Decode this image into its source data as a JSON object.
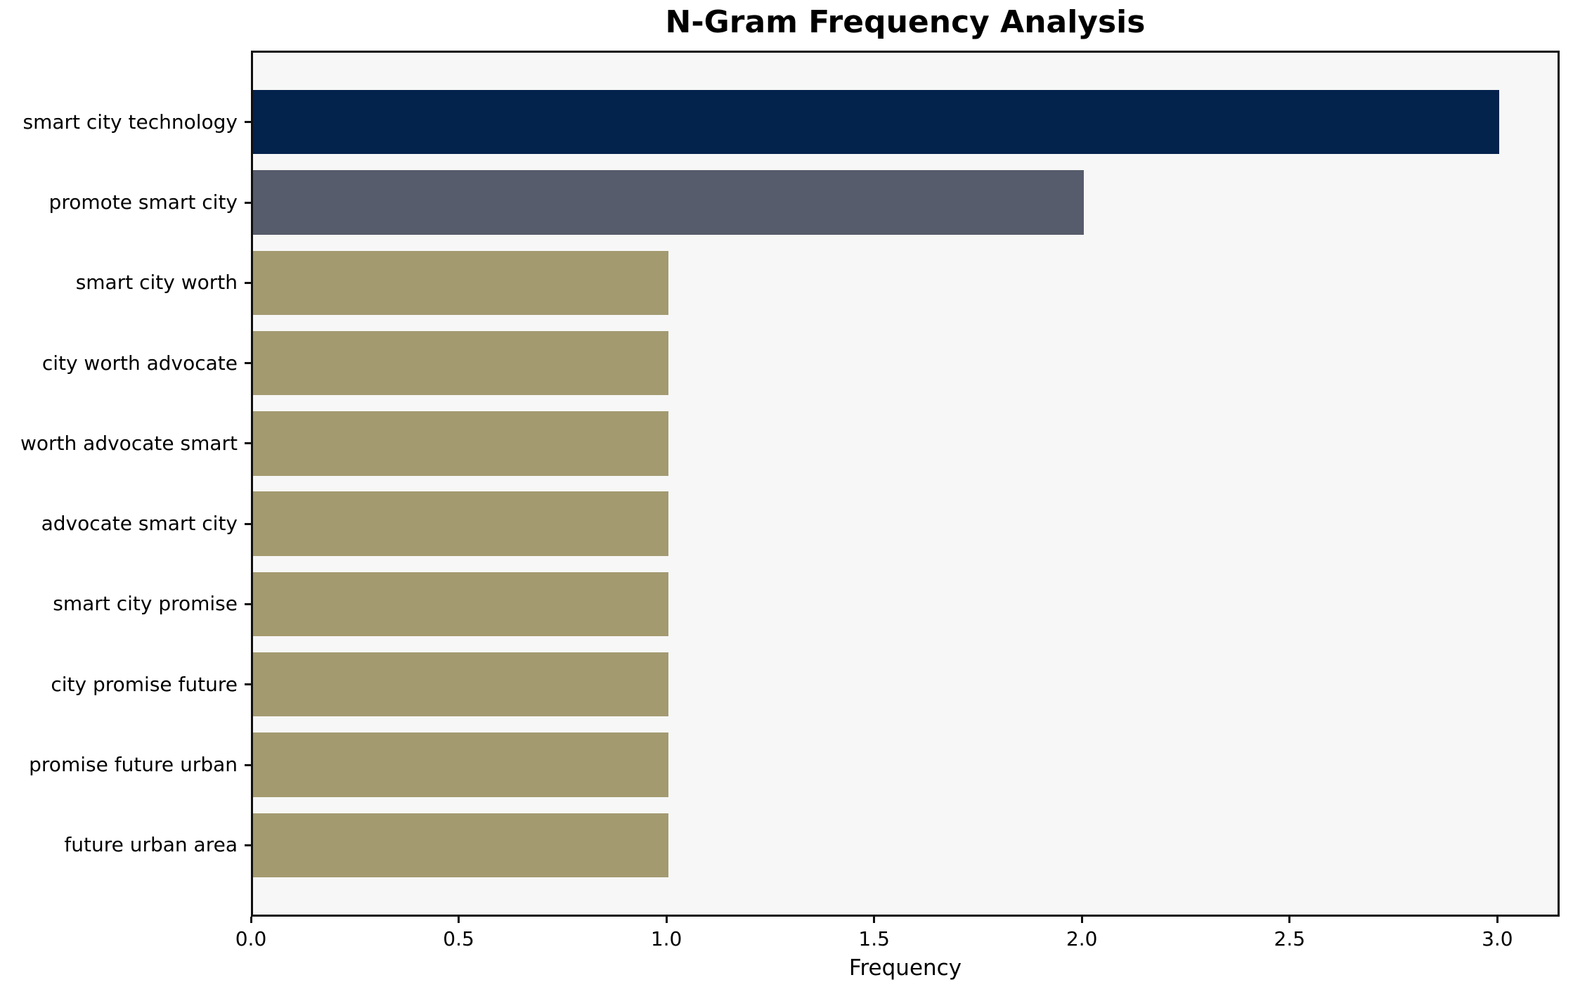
{
  "chart_data": {
    "type": "bar",
    "orientation": "horizontal",
    "title": "N-Gram Frequency Analysis",
    "xlabel": "Frequency",
    "ylabel": "",
    "categories": [
      "smart city technology",
      "promote smart city",
      "smart city worth",
      "city worth advocate",
      "worth advocate smart",
      "advocate smart city",
      "smart city promise",
      "city promise future",
      "promise future urban",
      "future urban area"
    ],
    "values": [
      3,
      2,
      1,
      1,
      1,
      1,
      1,
      1,
      1,
      1
    ],
    "bar_colors": [
      "#03224C",
      "#565C6B",
      "#A39A70",
      "#A39A70",
      "#A39A70",
      "#A39A70",
      "#A39A70",
      "#A39A70",
      "#A39A70",
      "#A39A70"
    ],
    "xlim": [
      0,
      3.15
    ],
    "x_ticks": [
      0.0,
      0.5,
      1.0,
      1.5,
      2.0,
      2.5,
      3.0
    ],
    "x_tick_labels": [
      "0.0",
      "0.5",
      "1.0",
      "1.5",
      "2.0",
      "2.5",
      "3.0"
    ],
    "grid": false,
    "legend": null,
    "colors": {
      "plot_background": "#F7F7F7",
      "figure_background": "#FFFFFF",
      "spine": "#0F0F0F",
      "text": "#000000"
    }
  }
}
